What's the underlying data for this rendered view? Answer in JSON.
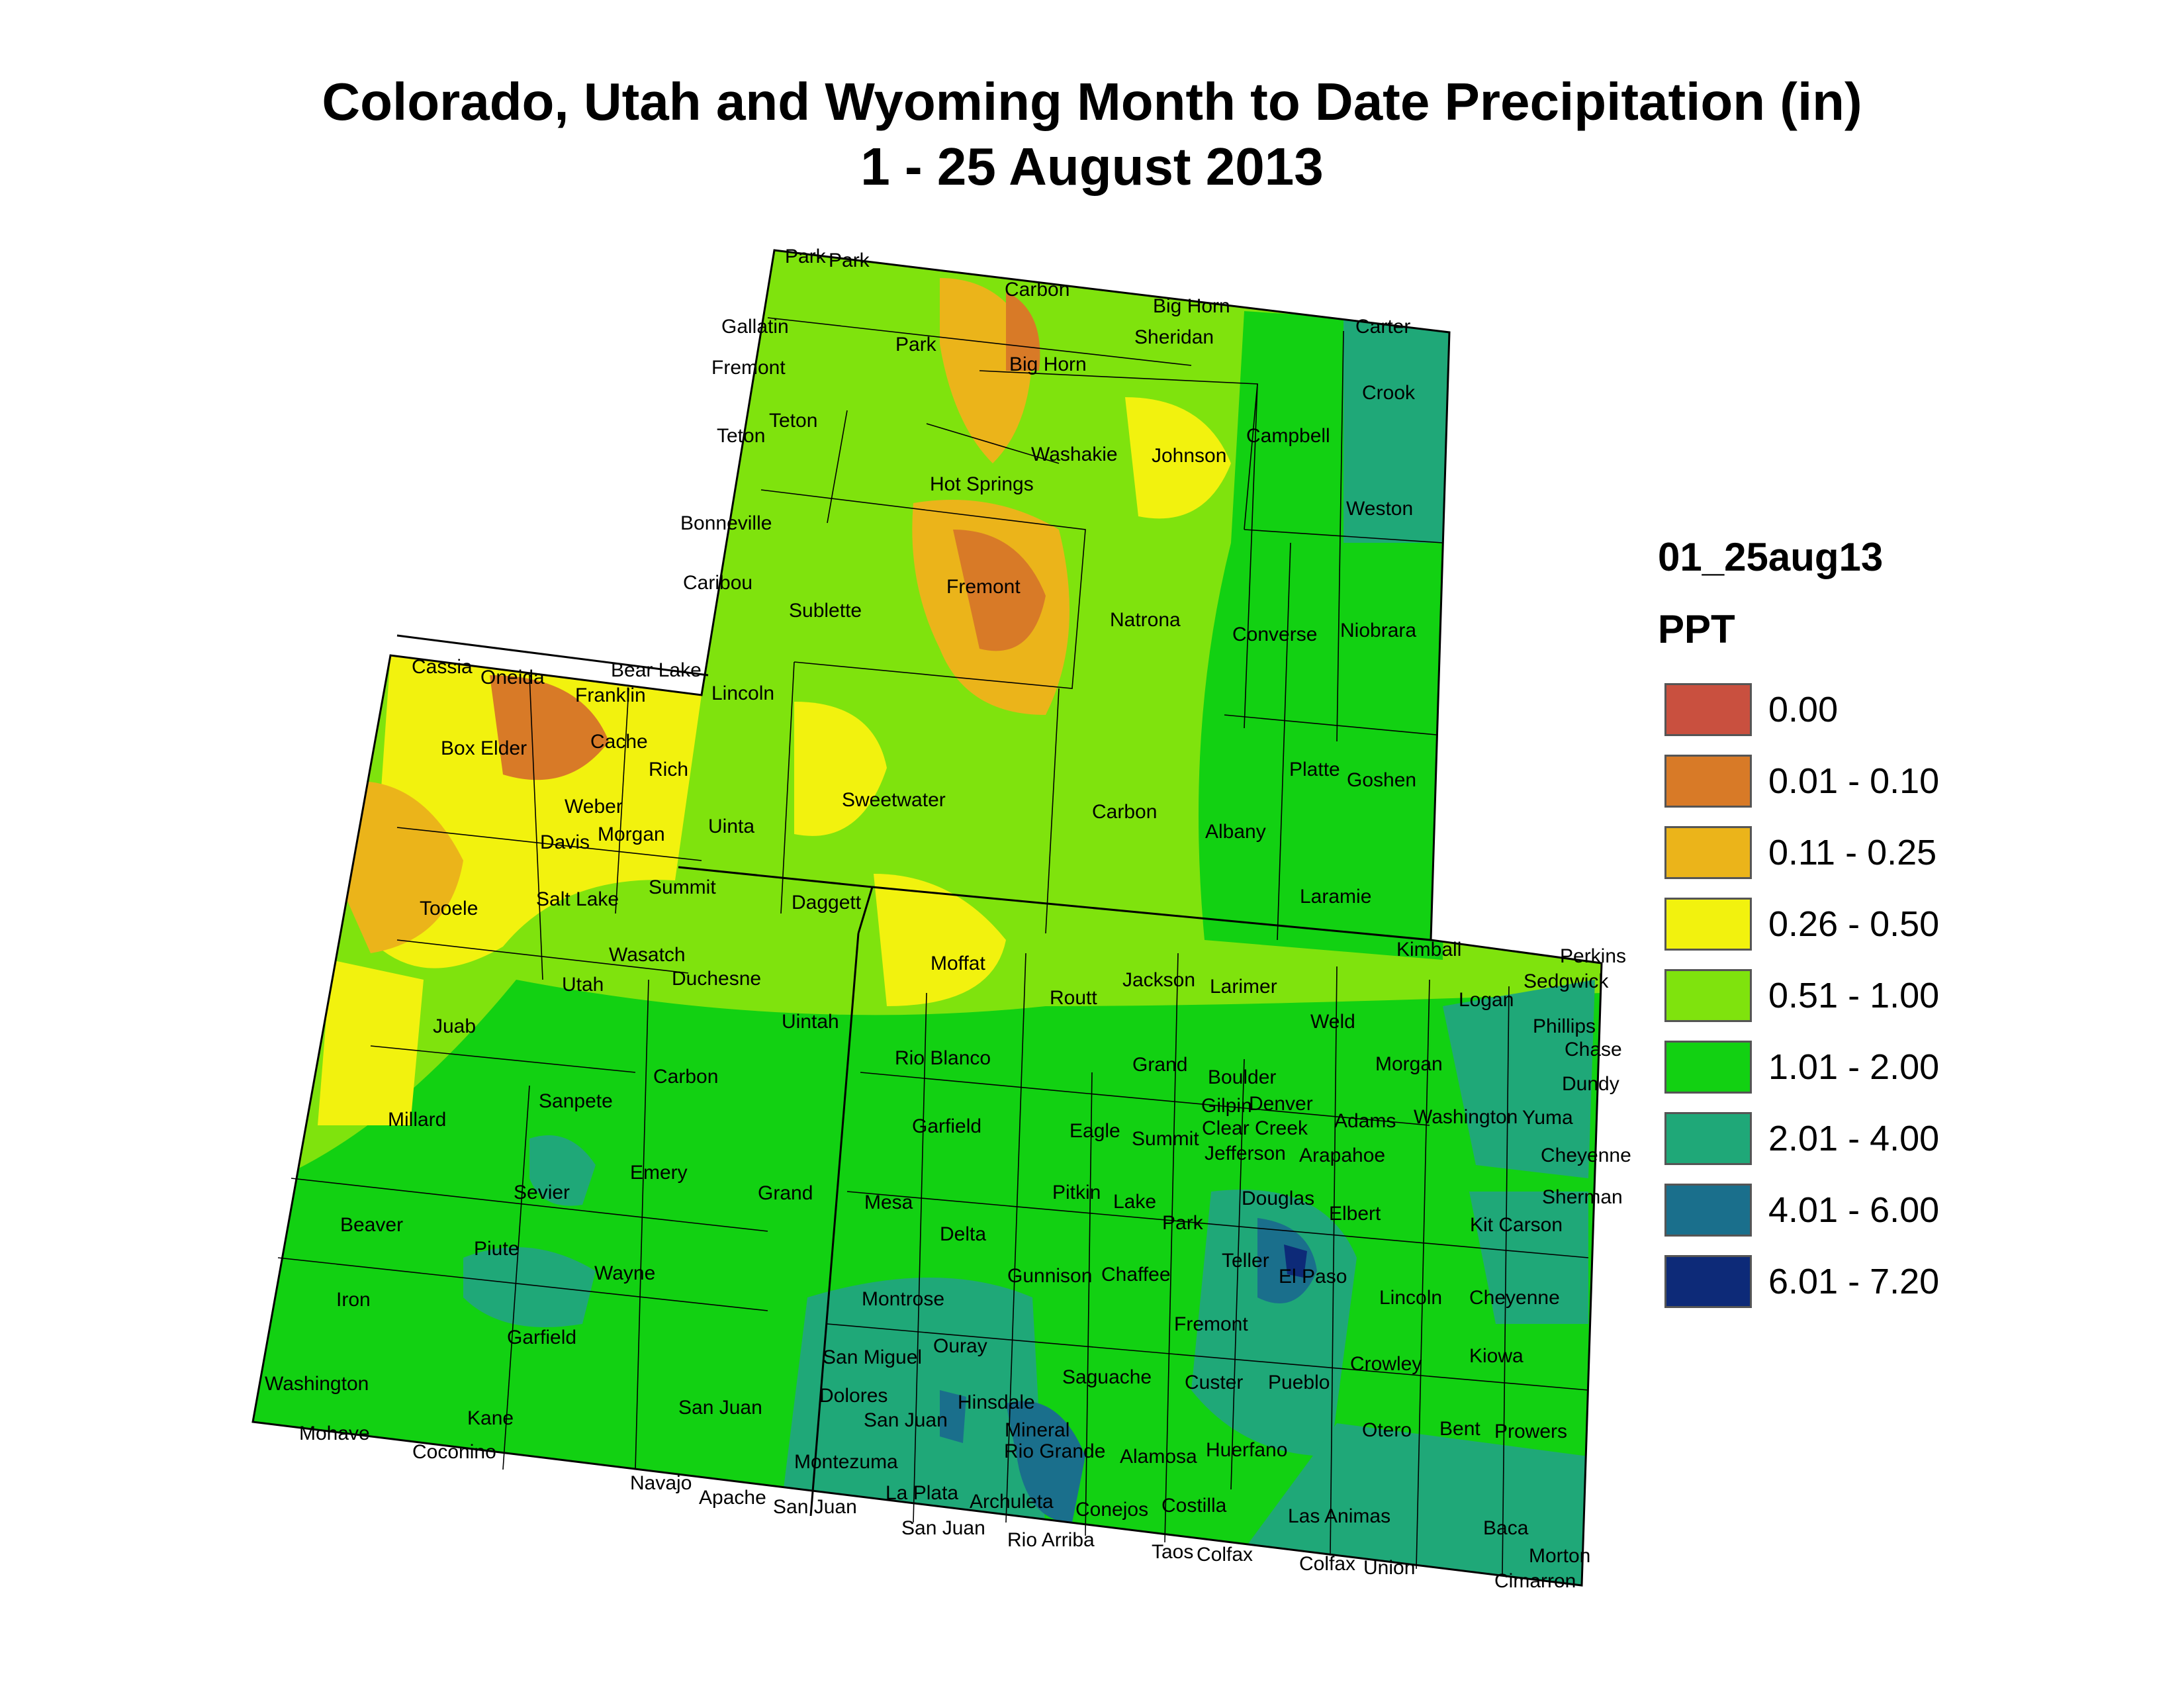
{
  "title": {
    "line1": "Colorado, Utah and Wyoming Month to Date Precipitation (in)",
    "line2": "1 - 25 August 2013"
  },
  "legend": {
    "layer": "01_25aug13",
    "field": "PPT",
    "items": [
      {
        "label": "0.00",
        "color": "#c9503f"
      },
      {
        "label": "0.01 - 0.10",
        "color": "#d87a27"
      },
      {
        "label": "0.11 - 0.25",
        "color": "#ebb41a"
      },
      {
        "label": "0.26 - 0.50",
        "color": "#f2f20e"
      },
      {
        "label": "0.51 - 1.00",
        "color": "#7fe30d"
      },
      {
        "label": "1.01 - 2.00",
        "color": "#12d112"
      },
      {
        "label": "2.01 - 4.00",
        "color": "#1fa878"
      },
      {
        "label": "4.01 - 6.00",
        "color": "#1a6f8c"
      },
      {
        "label": "6.01 - 7.20",
        "color": "#0d2a78"
      }
    ]
  },
  "counties": {
    "park_mt_1": "Park",
    "park_mt_2": "Park",
    "carbon_mt": "Carbon",
    "big_horn_mt": "Big Horn",
    "gallatin": "Gallatin",
    "fremont_id": "Fremont",
    "park_wy": "Park",
    "big_horn_wy": "Big Horn",
    "sheridan": "Sheridan",
    "carter": "Carter",
    "crook": "Crook",
    "teton_wy": "Teton",
    "teton_id": "Teton",
    "washakie": "Washakie",
    "johnson": "Johnson",
    "campbell": "Campbell",
    "hot_springs": "Hot Springs",
    "weston": "Weston",
    "bonneville": "Bonneville",
    "caribou": "Caribou",
    "fremont_wy": "Fremont",
    "sublette": "Sublette",
    "natrona": "Natrona",
    "converse": "Converse",
    "niobrara": "Niobrara",
    "cassia": "Cassia",
    "oneida": "Oneida",
    "bear_lake": "Bear Lake",
    "franklin": "Franklin",
    "lincoln_wy": "Lincoln",
    "box_elder": "Box Elder",
    "cache": "Cache",
    "rich": "Rich",
    "platte": "Platte",
    "goshen": "Goshen",
    "weber": "Weber",
    "sweetwater": "Sweetwater",
    "carbon_wy": "Carbon",
    "davis": "Davis",
    "morgan_ut": "Morgan",
    "uinta": "Uinta",
    "albany": "Albany",
    "salt_lake": "Salt Lake",
    "summit_ut": "Summit",
    "daggett": "Daggett",
    "tooele": "Tooele",
    "laramie": "Laramie",
    "kimball": "Kimball",
    "perkins": "Perkins",
    "wasatch": "Wasatch",
    "moffat": "Moffat",
    "jackson": "Jackson",
    "sedgwick": "Sedgwick",
    "utah": "Utah",
    "duchesne": "Duchesne",
    "larimer": "Larimer",
    "logan": "Logan",
    "phillips": "Phillips",
    "routt": "Routt",
    "uintah": "Uintah",
    "weld": "Weld",
    "juab": "Juab",
    "chase": "Chase",
    "rio_blanco": "Rio Blanco",
    "morgan_co": "Morgan",
    "grand_co": "Grand",
    "dundy": "Dundy",
    "carbon_ut": "Carbon",
    "boulder": "Boulder",
    "sanpete": "Sanpete",
    "gilpin": "Gilpin",
    "denver": "Denver",
    "millard": "Millard",
    "washington_co": "Washington",
    "yuma": "Yuma",
    "adams": "Adams",
    "clear_creek": "Clear Creek",
    "garfield_co": "Garfield",
    "eagle": "Eagle",
    "summit_co": "Summit",
    "emery": "Emery",
    "jefferson": "Jefferson",
    "arapahoe": "Arapahoe",
    "cheyenne_ks": "Cheyenne",
    "sevier": "Sevier",
    "grand_ut": "Grand",
    "pitkin": "Pitkin",
    "mesa": "Mesa",
    "douglas": "Douglas",
    "lake": "Lake",
    "sherman": "Sherman",
    "elbert": "Elbert",
    "beaver": "Beaver",
    "kit_carson": "Kit Carson",
    "delta": "Delta",
    "park_co": "Park",
    "piute": "Piute",
    "teller": "Teller",
    "chaffee": "Chaffee",
    "el_paso": "El Paso",
    "gunnison": "Gunnison",
    "wayne": "Wayne",
    "iron": "Iron",
    "lincoln_co": "Lincoln",
    "cheyenne_co": "Cheyenne",
    "montrose": "Montrose",
    "garfield_ut": "Garfield",
    "fremont_co": "Fremont",
    "ouray": "Ouray",
    "san_miguel": "San Miguel",
    "kiowa": "Kiowa",
    "crowley": "Crowley",
    "saguache": "Saguache",
    "washington_ut": "Washington",
    "custer": "Custer",
    "pueblo": "Pueblo",
    "dolores": "Dolores",
    "hinsdale": "Hinsdale",
    "san_juan_ut": "San Juan",
    "san_juan_co": "San Juan",
    "mineral": "Mineral",
    "kane": "Kane",
    "otero": "Otero",
    "bent": "Bent",
    "prowers": "Prowers",
    "mohave": "Mohave",
    "rio_grande": "Rio Grande",
    "alamosa": "Alamosa",
    "huerfano": "Huerfano",
    "coconino": "Coconino",
    "montezuma": "Montezuma",
    "navajo": "Navajo",
    "apache": "Apache",
    "la_plata": "La Plata",
    "costilla": "Costilla",
    "archuleta": "Archuleta",
    "san_juan_nm1": "San Juan",
    "conejos": "Conejos",
    "las_animas": "Las Animas",
    "baca": "Baca",
    "san_juan_nm2": "San Juan",
    "rio_arriba": "Rio Arriba",
    "taos": "Taos",
    "colfax_nm": "Colfax",
    "morton": "Morton",
    "colfax": "Colfax",
    "union": "Union",
    "cimarron": "Cimarron"
  }
}
